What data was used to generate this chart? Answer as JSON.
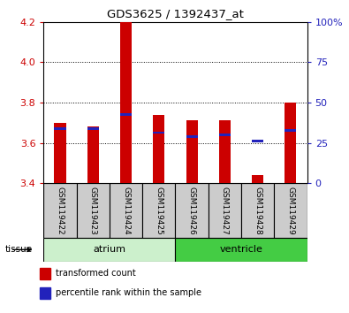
{
  "title": "GDS3625 / 1392437_at",
  "samples": [
    "GSM119422",
    "GSM119423",
    "GSM119424",
    "GSM119425",
    "GSM119426",
    "GSM119427",
    "GSM119428",
    "GSM119429"
  ],
  "red_values": [
    3.7,
    3.68,
    4.2,
    3.74,
    3.71,
    3.71,
    3.44,
    3.8
  ],
  "blue_values": [
    3.67,
    3.67,
    3.74,
    3.65,
    3.63,
    3.64,
    3.61,
    3.66
  ],
  "y_min": 3.4,
  "y_max": 4.2,
  "y_ticks": [
    3.4,
    3.6,
    3.8,
    4.0,
    4.2
  ],
  "y2_ticks": [
    0,
    25,
    50,
    75,
    100
  ],
  "bar_base": 3.4,
  "bar_width": 0.35,
  "red_color": "#cc0000",
  "blue_color": "#2222bb",
  "tissue_groups": [
    {
      "label": "atrium",
      "start": 0,
      "end": 3,
      "color": "#ccf0cc"
    },
    {
      "label": "ventricle",
      "start": 4,
      "end": 7,
      "color": "#44cc44"
    }
  ],
  "tissue_label": "tissue",
  "legend_items": [
    {
      "label": "transformed count",
      "color": "#cc0000"
    },
    {
      "label": "percentile rank within the sample",
      "color": "#2222bb"
    }
  ],
  "background_color": "#ffffff",
  "plot_bg": "#ffffff",
  "tick_area_bg": "#cccccc"
}
